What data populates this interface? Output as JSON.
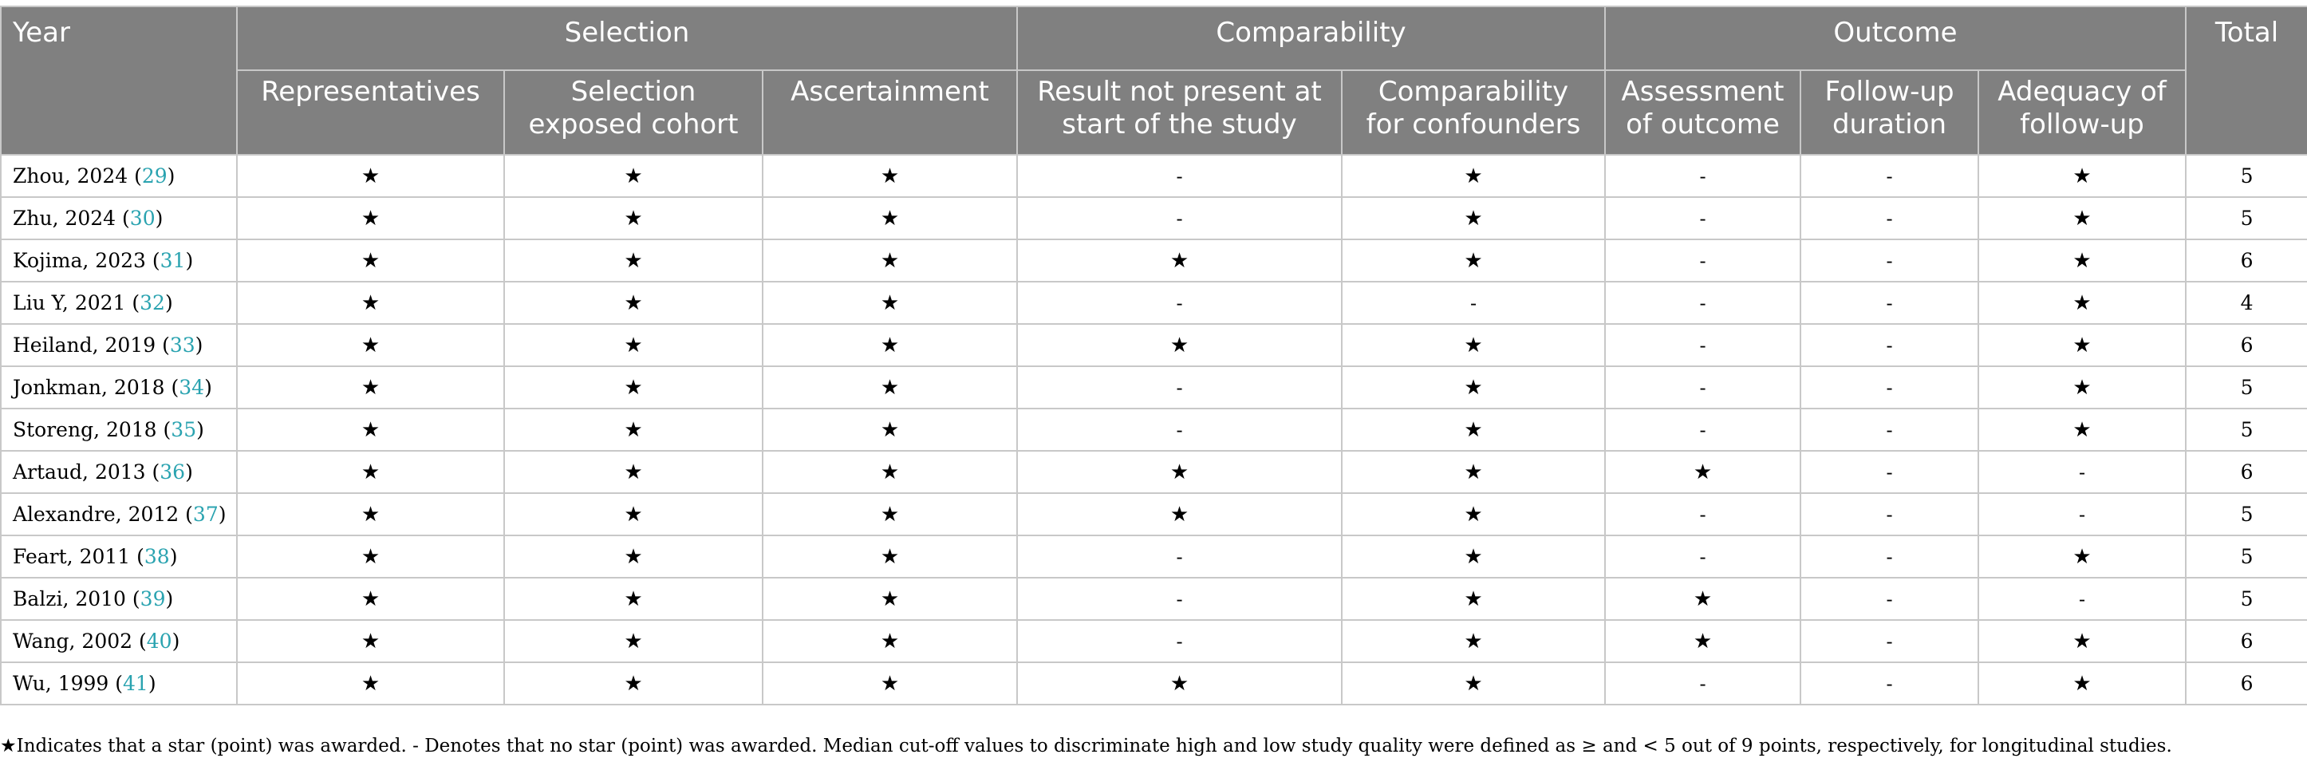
{
  "header": {
    "col_year": "Year",
    "group_selection": "Selection",
    "group_comparability": "Comparability",
    "group_outcome": "Outcome",
    "col_total": "Total",
    "sub_representatives": "Representatives",
    "sub_selection_exposed_line1": "Selection",
    "sub_selection_exposed_line2": "exposed cohort",
    "sub_ascertainment": "Ascertainment",
    "sub_result_not_present_line1": "Result not present at",
    "sub_result_not_present_line2": "start of the study",
    "sub_comparability_line1": "Comparability",
    "sub_comparability_line2": "for confounders",
    "sub_assessment_line1": "Assessment",
    "sub_assessment_line2": "of outcome",
    "sub_followup_duration_line1": "Follow-up",
    "sub_followup_duration_line2": "duration",
    "sub_adequacy_line1": "Adequacy of",
    "sub_adequacy_line2": "follow-up"
  },
  "rows": [
    {
      "study": "Zhou, 2024",
      "ref": "29",
      "cells": [
        "★",
        "★",
        "★",
        "-",
        "★",
        "-",
        "-",
        "★"
      ],
      "total": "5"
    },
    {
      "study": "Zhu, 2024",
      "ref": "30",
      "cells": [
        "★",
        "★",
        "★",
        "-",
        "★",
        "-",
        "-",
        "★"
      ],
      "total": "5"
    },
    {
      "study": "Kojima, 2023",
      "ref": "31",
      "cells": [
        "★",
        "★",
        "★",
        "★",
        "★",
        "-",
        "-",
        "★"
      ],
      "total": "6"
    },
    {
      "study": "Liu Y, 2021",
      "ref": "32",
      "cells": [
        "★",
        "★",
        "★",
        "-",
        "-",
        "-",
        "-",
        "★"
      ],
      "total": "4"
    },
    {
      "study": "Heiland, 2019",
      "ref": "33",
      "cells": [
        "★",
        "★",
        "★",
        "★",
        "★",
        "-",
        "-",
        "★"
      ],
      "total": "6"
    },
    {
      "study": "Jonkman, 2018",
      "ref": "34",
      "cells": [
        "★",
        "★",
        "★",
        "-",
        "★",
        "-",
        "-",
        "★"
      ],
      "total": "5"
    },
    {
      "study": "Storeng, 2018",
      "ref": "35",
      "cells": [
        "★",
        "★",
        "★",
        "-",
        "★",
        "-",
        "-",
        "★"
      ],
      "total": "5"
    },
    {
      "study": "Artaud, 2013",
      "ref": "36",
      "cells": [
        "★",
        "★",
        "★",
        "★",
        "★",
        "★",
        "-",
        "-"
      ],
      "total": "6"
    },
    {
      "study": "Alexandre, 2012",
      "ref": "37",
      "cells": [
        "★",
        "★",
        "★",
        "★",
        "★",
        "-",
        "-",
        "-"
      ],
      "total": "5"
    },
    {
      "study": "Feart, 2011",
      "ref": "38",
      "cells": [
        "★",
        "★",
        "★",
        "-",
        "★",
        "-",
        "-",
        "★"
      ],
      "total": "5"
    },
    {
      "study": "Balzi, 2010",
      "ref": "39",
      "cells": [
        "★",
        "★",
        "★",
        "-",
        "★",
        "★",
        "-",
        "-"
      ],
      "total": "5"
    },
    {
      "study": "Wang, 2002",
      "ref": "40",
      "cells": [
        "★",
        "★",
        "★",
        "-",
        "★",
        "★",
        "-",
        "★"
      ],
      "total": "6"
    },
    {
      "study": "Wu, 1999",
      "ref": "41",
      "cells": [
        "★",
        "★",
        "★",
        "★",
        "★",
        "-",
        "-",
        "★"
      ],
      "total": "6"
    }
  ],
  "footnote": "★Indicates that a star (point) was awarded. - Denotes that no star (point) was awarded. Median cut-off values to discriminate high and low study quality were defined as ≥ and < 5 out of 9 points, respectively, for longitudinal studies."
}
